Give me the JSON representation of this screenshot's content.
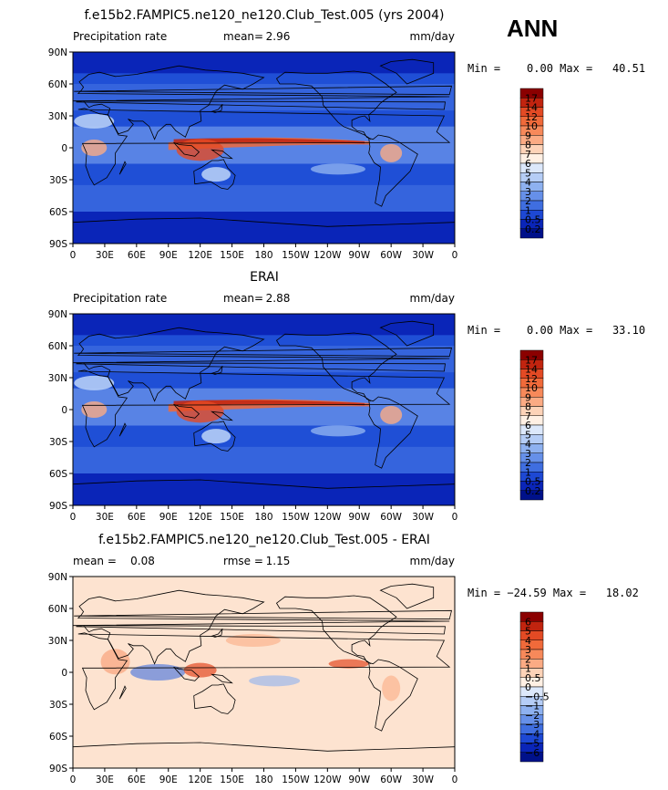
{
  "season": "ANN",
  "chart_data": [
    {
      "type": "heatmap",
      "title": "f.e15b2.FAMPIC5.ne120_ne120.Club_Test.005 (yrs 2004)",
      "left_label": "Precipitation rate",
      "stat_label": "mean=",
      "stat_value": "2.96",
      "units": "mm/day",
      "min_text": "Min =    0.00 Max =   40.51",
      "min": 0.0,
      "max": 40.51,
      "lat_ticks": [
        "90N",
        "60N",
        "30N",
        "0",
        "30S",
        "60S",
        "90S"
      ],
      "lon_ticks": [
        "0",
        "30E",
        "60E",
        "90E",
        "120E",
        "150E",
        "180",
        "150W",
        "120W",
        "90W",
        "60W",
        "30W",
        "0"
      ],
      "levels": [
        "17",
        "14",
        "12",
        "10",
        "9",
        "8",
        "7",
        "6",
        "5",
        "4",
        "3",
        "2",
        "1",
        "0.5",
        "0.2"
      ],
      "colors": [
        "#8b0000",
        "#c1240f",
        "#e34a24",
        "#f06a3a",
        "#f7895a",
        "#fbab84",
        "#fdd3b8",
        "#fff0e4",
        "#dce8fb",
        "#b5cdf6",
        "#8eb1f0",
        "#6690e9",
        "#3f6ee0",
        "#1d48d4",
        "#0a25b8",
        "#00118a"
      ]
    },
    {
      "type": "heatmap",
      "title": "ERAI",
      "left_label": "Precipitation rate",
      "stat_label": "mean=",
      "stat_value": "2.88",
      "units": "mm/day",
      "min_text": "Min =    0.00 Max =   33.10",
      "min": 0.0,
      "max": 33.1,
      "lat_ticks": [
        "90N",
        "60N",
        "30N",
        "0",
        "30S",
        "60S",
        "90S"
      ],
      "lon_ticks": [
        "0",
        "30E",
        "60E",
        "90E",
        "120E",
        "150E",
        "180",
        "150W",
        "120W",
        "90W",
        "60W",
        "30W",
        "0"
      ],
      "levels": [
        "17",
        "14",
        "12",
        "10",
        "9",
        "8",
        "7",
        "6",
        "5",
        "4",
        "3",
        "2",
        "1",
        "0.5",
        "0.2"
      ],
      "colors": [
        "#8b0000",
        "#c1240f",
        "#e34a24",
        "#f06a3a",
        "#f7895a",
        "#fbab84",
        "#fdd3b8",
        "#fff0e4",
        "#dce8fb",
        "#b5cdf6",
        "#8eb1f0",
        "#6690e9",
        "#3f6ee0",
        "#1d48d4",
        "#0a25b8",
        "#00118a"
      ]
    },
    {
      "type": "heatmap",
      "title": "f.e15b2.FAMPIC5.ne120_ne120.Club_Test.005 - ERAI",
      "left_label": "mean =    0.08",
      "stat_label": "rmse =",
      "stat_value": "1.15",
      "units": "mm/day",
      "min_text": "Min = −24.59 Max =   18.02",
      "min": -24.59,
      "max": 18.02,
      "lat_ticks": [
        "90N",
        "60N",
        "30N",
        "0",
        "30S",
        "60S",
        "90S"
      ],
      "lon_ticks": [
        "0",
        "30E",
        "60E",
        "90E",
        "120E",
        "150E",
        "180",
        "150W",
        "120W",
        "90W",
        "60W",
        "30W",
        "0"
      ],
      "levels": [
        "6",
        "5",
        "4",
        "3",
        "2",
        "1",
        "0.5",
        "0",
        "−0.5",
        "−1",
        "−2",
        "−3",
        "−4",
        "−5",
        "−6"
      ],
      "colors": [
        "#8b0000",
        "#c1240f",
        "#e34a24",
        "#f06a3a",
        "#f7895a",
        "#fbab84",
        "#fdd3b8",
        "#fff0e4",
        "#dce8fb",
        "#b5cdf6",
        "#8eb1f0",
        "#6690e9",
        "#3f6ee0",
        "#1d48d4",
        "#0a25b8",
        "#00118a"
      ]
    }
  ]
}
